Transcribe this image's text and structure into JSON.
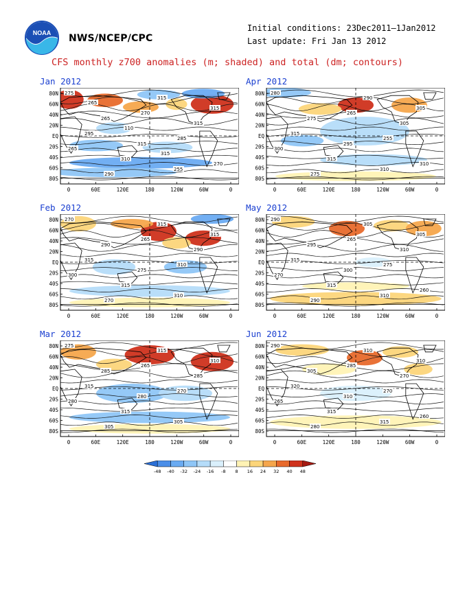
{
  "header": {
    "agency": "NWS/NCEP/CPC",
    "initial_conditions": "Initial conditions: 23Dec2011–1Jan2012",
    "last_update": "Last update: Fri Jan 13 2012",
    "title": "CFS monthly z700 anomalies (m; shaded) and total (dm; contours)",
    "logo_text": "NOAA"
  },
  "axes": {
    "lat_labels": [
      "80N",
      "60N",
      "40N",
      "20N",
      "EQ",
      "20S",
      "40S",
      "60S",
      "80S"
    ],
    "lon_labels": [
      "0",
      "60E",
      "120E",
      "180",
      "120W",
      "60W",
      "0"
    ]
  },
  "panels": [
    {
      "title": "Jan 2012",
      "contour_labels": [
        "275",
        "265",
        "315",
        "255",
        "315",
        "295",
        "310",
        "315",
        "315",
        "265",
        "290",
        "270",
        "285",
        "270",
        "265",
        "110",
        "315"
      ]
    },
    {
      "title": "Feb 2012",
      "contour_labels": [
        "270",
        "290",
        "275",
        "310",
        "315",
        "315",
        "315",
        "315",
        "290",
        "300",
        "270",
        "265",
        "310"
      ]
    },
    {
      "title": "Mar 2012",
      "contour_labels": [
        "275",
        "285",
        "280",
        "305",
        "310",
        "315",
        "315",
        "315",
        "285",
        "280",
        "305",
        "265",
        "270"
      ]
    },
    {
      "title": "Apr 2012",
      "contour_labels": [
        "280",
        "275",
        "295",
        "310",
        "305",
        "315",
        "315",
        "290",
        "305",
        "300",
        "275",
        "265",
        "255",
        "310"
      ]
    },
    {
      "title": "May 2012",
      "contour_labels": [
        "290",
        "295",
        "300",
        "310",
        "305",
        "315",
        "315",
        "305",
        "310",
        "270",
        "290",
        "265",
        "275",
        "260"
      ]
    },
    {
      "title": "Jun 2012",
      "contour_labels": [
        "290",
        "305",
        "310",
        "315",
        "310",
        "320",
        "315",
        "310",
        "270",
        "265",
        "280",
        "285",
        "270",
        "260"
      ]
    }
  ],
  "colorbar": {
    "ticks": [
      "-48",
      "-40",
      "-32",
      "-24",
      "-16",
      "-8",
      "8",
      "16",
      "24",
      "32",
      "40",
      "48"
    ],
    "colors": [
      "#2a6fd6",
      "#4a8ee8",
      "#6aabf2",
      "#8fc6f7",
      "#b5dcf9",
      "#daf0fc",
      "#ffffff",
      "#fff3b5",
      "#fcd57a",
      "#f5a64c",
      "#e86a2c",
      "#cf321c",
      "#a51a12"
    ]
  },
  "colors": {
    "title_red": "#cc2222",
    "panel_title_blue": "#1a3fd0"
  }
}
